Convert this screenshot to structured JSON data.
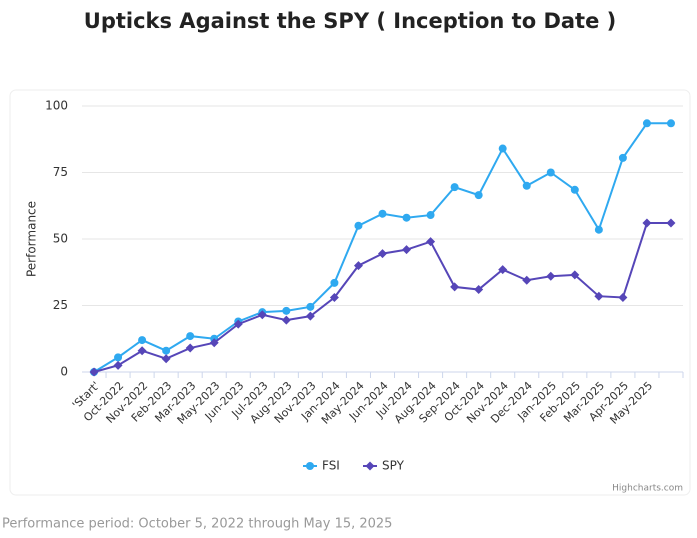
{
  "chart_data": {
    "type": "line",
    "title": "Upticks Against the SPY ( Inception to Date )",
    "y_label": "Performance",
    "categories": [
      "'Start'",
      "Oct-2022",
      "Nov-2022",
      "Feb-2023",
      "Mar-2023",
      "May-2023",
      "Jun-2023",
      "Jul-2023",
      "Aug-2023",
      "Nov-2023",
      "Jan-2024",
      "May-2024",
      "Jun-2024",
      "Jul-2024",
      "Aug-2024",
      "Sep-2024",
      "Oct-2024",
      "Nov-2024",
      "Dec-2024",
      "Jan-2025",
      "Feb-2025",
      "Mar-2025",
      "Apr-2025",
      "May-2025",
      null
    ],
    "series": [
      {
        "name": "FSI",
        "color": "#2fa9f0",
        "marker": "circle",
        "values": [
          0,
          5.5,
          12,
          8,
          13.5,
          12.5,
          19,
          22.5,
          23,
          24.5,
          33.5,
          55,
          59.5,
          58,
          59,
          69.5,
          66.5,
          84,
          70,
          75,
          68.5,
          53.5,
          80.5,
          93.5,
          93.5
        ]
      },
      {
        "name": "SPY",
        "color": "#5646b8",
        "marker": "diamond",
        "values": [
          0,
          2.5,
          8,
          5,
          9,
          11,
          18,
          21.5,
          19.5,
          21,
          28,
          40,
          44.5,
          46,
          49,
          32,
          31,
          38.5,
          34.5,
          36,
          36.5,
          28.5,
          28,
          56,
          56
        ]
      }
    ],
    "ylim": [
      0,
      100
    ],
    "yticks": [
      0,
      25,
      50,
      75,
      100
    ],
    "grid": true,
    "legend": "bottom",
    "credits": "Highcharts.com"
  },
  "footer": "Performance period: October 5, 2022 through May 15, 2025"
}
